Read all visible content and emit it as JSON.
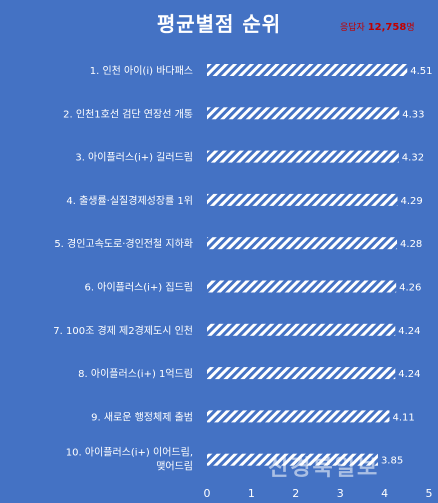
{
  "header": {
    "title": "평균별점 순위",
    "respondents_prefix": "응답자",
    "respondents_count": "12,758",
    "respondents_suffix": "명"
  },
  "watermark": "신경북일보",
  "colors": {
    "background": "#4472c4",
    "bar_stripe": "#ffffff",
    "text": "#ffffff",
    "accent": "#c00000"
  },
  "chart_data": {
    "type": "bar",
    "orientation": "horizontal",
    "title": "평균별점 순위",
    "categories": [
      "1. 인천 아이(i) 바다패스",
      "2. 인천1호선 검단 연장선 개통",
      "3. 아이플러스(i+) 길러드림",
      "4. 출생률·실질경제성장률 1위",
      "5. 경인고속도로·경인전철 지하화",
      "6. 아이플러스(i+) 집드림",
      "7. 100조 경제 제2경제도시 인천",
      "8. 아이플러스(i+) 1억드림",
      "9. 새로운 행정체제 출범",
      "10. 아이플러스(i+) 이어드림, 맺어드림"
    ],
    "values": [
      4.51,
      4.33,
      4.32,
      4.29,
      4.28,
      4.26,
      4.24,
      4.24,
      4.11,
      3.85
    ],
    "value_labels": [
      "4.51",
      "4.33",
      "4.32",
      "4.29",
      "4.28",
      "4.26",
      "4.24",
      "4.24",
      "4.11",
      "3.85"
    ],
    "xlim": [
      0,
      5
    ],
    "xticks": [
      "0",
      "1",
      "2",
      "3",
      "4",
      "5"
    ],
    "grid": false,
    "legend": "none"
  }
}
